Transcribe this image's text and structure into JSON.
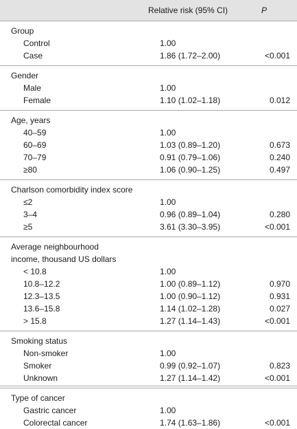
{
  "header": {
    "relative_risk": "Relative risk (95% CI)",
    "p": "P"
  },
  "sections": [
    {
      "title": [
        "Group"
      ],
      "rows": [
        {
          "label": "Control",
          "rr": "1.00",
          "p": ""
        },
        {
          "label": "Case",
          "rr": "1.86 (1.72–2.00)",
          "p": "<0.001"
        }
      ]
    },
    {
      "title": [
        "Gender"
      ],
      "rows": [
        {
          "label": "Male",
          "rr": "1.00",
          "p": ""
        },
        {
          "label": "Female",
          "rr": "1.10 (1.02–1.18)",
          "p": "0.012"
        }
      ]
    },
    {
      "title": [
        "Age, years"
      ],
      "rows": [
        {
          "label": "40–59",
          "rr": "1.00",
          "p": ""
        },
        {
          "label": "60–69",
          "rr": "1.03 (0.89–1.20)",
          "p": "0.673"
        },
        {
          "label": "70–79",
          "rr": "0.91 (0.79–1.06)",
          "p": "0.240"
        },
        {
          "label": "≥80",
          "rr": "1.06 (0.90–1.25)",
          "p": "0.497"
        }
      ]
    },
    {
      "title": [
        "Charlson comorbidity index score"
      ],
      "rows": [
        {
          "label": "≤2",
          "rr": "1.00",
          "p": ""
        },
        {
          "label": "3–4",
          "rr": "0.96 (0.89–1.04)",
          "p": "0.280"
        },
        {
          "label": "≥5",
          "rr": "3.61 (3.30–3.95)",
          "p": "<0.001"
        }
      ]
    },
    {
      "title": [
        "Average neighbourhood",
        "income, thousand US dollars"
      ],
      "rows": [
        {
          "label": "< 10.8",
          "rr": "1.00",
          "p": ""
        },
        {
          "label": "10.8–12.2",
          "rr": "1.00 (0.89–1.12)",
          "p": "0.970"
        },
        {
          "label": "12.3–13.5",
          "rr": "1.00 (0.90–1.12)",
          "p": "0.931"
        },
        {
          "label": "13.6–15.8",
          "rr": "1.14 (1.02–1.28)",
          "p": "0.027"
        },
        {
          "label": "> 15.8",
          "rr": "1.27 (1.14–1.43)",
          "p": "<0.001"
        }
      ]
    },
    {
      "title": [
        "Smoking status"
      ],
      "rows": [
        {
          "label": "Non-smoker",
          "rr": "1.00",
          "p": ""
        },
        {
          "label": "Smoker",
          "rr": "0.99 (0.92–1.07)",
          "p": "0.823"
        },
        {
          "label": "Unknown",
          "rr": "1.27 (1.14–1.42)",
          "p": "<0.001"
        }
      ]
    },
    {
      "title": [
        "Type of cancer"
      ],
      "rows": [
        {
          "label": "Gastric cancer",
          "rr": "1.00",
          "p": ""
        },
        {
          "label": "Colorectal cancer",
          "rr": "1.74 (1.63–1.86)",
          "p": "<0.001"
        }
      ]
    }
  ]
}
